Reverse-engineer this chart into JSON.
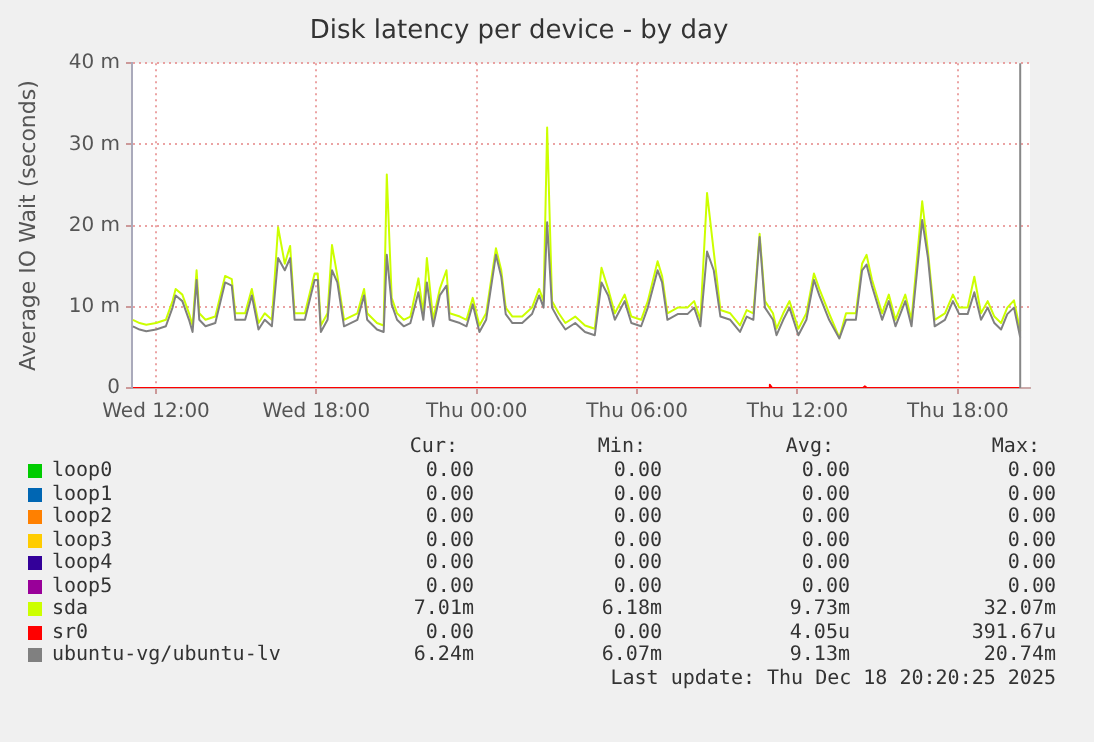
{
  "chart_data": {
    "type": "line",
    "title": "Disk latency per device - by day",
    "ylabel": "Average IO Wait (seconds)",
    "xlim": [
      "2025-12-17T11:06",
      "2025-12-18T20:42"
    ],
    "xticks": [
      {
        "value": "2025-12-17T12:00",
        "label": "Wed 12:00"
      },
      {
        "value": "2025-12-17T18:00",
        "label": "Wed 18:00"
      },
      {
        "value": "2025-12-18T00:00",
        "label": "Thu 00:00"
      },
      {
        "value": "2025-12-18T06:00",
        "label": "Thu 06:00"
      },
      {
        "value": "2025-12-18T12:00",
        "label": "Thu 12:00"
      },
      {
        "value": "2025-12-18T18:00",
        "label": "Thu 18:00"
      }
    ],
    "ylim": [
      0,
      40
    ],
    "yticks": [
      0,
      {
        "value": 10,
        "label": "10 m"
      },
      {
        "value": 20,
        "label": "20 m"
      },
      {
        "value": 30,
        "label": "30 m"
      },
      {
        "value": 40,
        "label": "40 m"
      }
    ],
    "grid": true,
    "legend": "bottom",
    "marker": "none",
    "line_style": "solid",
    "x": [
      "2025-12-17T11:08",
      "2025-12-17T11:23",
      "2025-12-17T11:38",
      "2025-12-17T12:00",
      "2025-12-17T12:22",
      "2025-12-17T12:37",
      "2025-12-17T12:44",
      "2025-12-17T12:59",
      "2025-12-17T13:14",
      "2025-12-17T13:22",
      "2025-12-17T13:31",
      "2025-12-17T13:37",
      "2025-12-17T13:51",
      "2025-12-17T14:13",
      "2025-12-17T14:35",
      "2025-12-17T14:50",
      "2025-12-17T14:58",
      "2025-12-17T15:20",
      "2025-12-17T15:35",
      "2025-12-17T15:50",
      "2025-12-17T16:04",
      "2025-12-17T16:20",
      "2025-12-17T16:34",
      "2025-12-17T16:49",
      "2025-12-17T17:01",
      "2025-12-17T17:11",
      "2025-12-17T17:34",
      "2025-12-17T17:56",
      "2025-12-17T18:03",
      "2025-12-17T18:10",
      "2025-12-17T18:25",
      "2025-12-17T18:35",
      "2025-12-17T18:47",
      "2025-12-17T19:02",
      "2025-12-17T19:32",
      "2025-12-17T19:47",
      "2025-12-17T19:54",
      "2025-12-17T20:16",
      "2025-12-17T20:31",
      "2025-12-17T20:38",
      "2025-12-17T20:49",
      "2025-12-17T21:01",
      "2025-12-17T21:16",
      "2025-12-17T21:31",
      "2025-12-17T21:49",
      "2025-12-17T22:00",
      "2025-12-17T22:08",
      "2025-12-17T22:22",
      "2025-12-17T22:37",
      "2025-12-17T22:52",
      "2025-12-17T22:59",
      "2025-12-17T23:22",
      "2025-12-17T23:37",
      "2025-12-17T23:51",
      "2025-12-18T00:06",
      "2025-12-18T00:21",
      "2025-12-18T00:43",
      "2025-12-18T00:55",
      "2025-12-18T01:05",
      "2025-12-18T01:20",
      "2025-12-18T01:42",
      "2025-12-18T02:04",
      "2025-12-18T02:20",
      "2025-12-18T02:30",
      "2025-12-18T02:38",
      "2025-12-18T02:49",
      "2025-12-18T03:04",
      "2025-12-18T03:19",
      "2025-12-18T03:41",
      "2025-12-18T04:03",
      "2025-12-18T04:25",
      "2025-12-18T04:40",
      "2025-12-18T04:55",
      "2025-12-18T05:10",
      "2025-12-18T05:32",
      "2025-12-18T05:47",
      "2025-12-18T06:09",
      "2025-12-18T06:24",
      "2025-12-18T06:46",
      "2025-12-18T06:56",
      "2025-12-18T07:08",
      "2025-12-18T07:31",
      "2025-12-18T07:53",
      "2025-12-18T08:08",
      "2025-12-18T08:22",
      "2025-12-18T08:37",
      "2025-12-18T08:52",
      "2025-12-18T09:07",
      "2025-12-18T09:29",
      "2025-12-18T09:51",
      "2025-12-18T10:06",
      "2025-12-18T10:21",
      "2025-12-18T10:35",
      "2025-12-18T10:47",
      "2025-12-18T11:05",
      "2025-12-18T11:13",
      "2025-12-18T11:28",
      "2025-12-18T11:42",
      "2025-12-18T12:02",
      "2025-12-18T12:20",
      "2025-12-18T12:37",
      "2025-12-18T12:49",
      "2025-12-18T13:11",
      "2025-12-18T13:34",
      "2025-12-18T13:49",
      "2025-12-18T14:11",
      "2025-12-18T14:25",
      "2025-12-18T14:35",
      "2025-12-18T14:47",
      "2025-12-18T15:10",
      "2025-12-18T15:25",
      "2025-12-18T15:40",
      "2025-12-18T16:02",
      "2025-12-18T16:16",
      "2025-12-18T16:40",
      "2025-12-18T16:53",
      "2025-12-18T17:08",
      "2025-12-18T17:31",
      "2025-12-18T17:49",
      "2025-12-18T18:03",
      "2025-12-18T18:22",
      "2025-12-18T18:37",
      "2025-12-18T18:52",
      "2025-12-18T19:07",
      "2025-12-18T19:22",
      "2025-12-18T19:37",
      "2025-12-18T19:51",
      "2025-12-18T20:06",
      "2025-12-18T20:20"
    ],
    "series": [
      {
        "name": "loop0",
        "color": "#00cc00",
        "values": [
          null,
          null,
          null,
          null,
          null,
          null,
          null,
          null,
          null,
          null,
          null,
          null,
          null,
          null,
          null,
          null,
          null,
          null,
          null,
          null,
          null,
          null,
          null,
          null,
          null,
          null,
          null,
          null,
          null,
          null,
          null,
          null,
          null,
          null,
          null,
          null,
          null,
          null,
          null,
          null,
          null,
          null,
          null,
          null,
          null,
          null,
          null,
          null,
          null,
          null,
          null,
          null,
          null,
          null,
          null,
          null,
          null,
          null,
          null,
          null,
          null,
          null,
          null,
          null,
          null,
          null,
          null,
          null,
          null,
          null,
          null,
          null,
          null,
          null,
          null,
          null,
          null,
          null,
          null,
          null,
          null,
          null,
          null,
          null,
          null,
          null,
          null,
          null,
          null,
          null,
          null,
          null,
          null,
          null,
          null,
          null,
          null,
          null,
          null,
          null,
          null,
          null,
          null,
          null,
          null,
          null,
          null,
          null,
          null,
          null,
          null,
          null,
          null,
          null,
          null,
          null,
          null,
          null,
          null,
          null,
          null,
          null,
          null,
          null,
          null,
          null,
          null,
          null,
          null
        ]
      },
      {
        "name": "loop1",
        "color": "#0066b3",
        "values": [
          null,
          null,
          null,
          null,
          null,
          null,
          null,
          null,
          null,
          null,
          null,
          null,
          null,
          null,
          null,
          null,
          null,
          null,
          null,
          null,
          null,
          null,
          null,
          null,
          null,
          null,
          null,
          null,
          null,
          null,
          null,
          null,
          null,
          null,
          null,
          null,
          null,
          null,
          null,
          null,
          null,
          null,
          null,
          null,
          null,
          null,
          null,
          null,
          null,
          null,
          null,
          null,
          null,
          null,
          null,
          null,
          null,
          null,
          null,
          null,
          null,
          null,
          null,
          null,
          null,
          null,
          null,
          null,
          null,
          null,
          null,
          null,
          null,
          null,
          null,
          null,
          null,
          null,
          null,
          null,
          null,
          null,
          null,
          null,
          null,
          null,
          null,
          null,
          null,
          null,
          null,
          null,
          null,
          null,
          null,
          null,
          null,
          null,
          null,
          null,
          null,
          null,
          null,
          null,
          null,
          null,
          null,
          null,
          null,
          null,
          null,
          null,
          null,
          null,
          null,
          null,
          null,
          null,
          null,
          null,
          null,
          null,
          null,
          null,
          null,
          null,
          null,
          null,
          null
        ]
      },
      {
        "name": "loop2",
        "color": "#ff8000",
        "values": [
          null,
          null,
          null,
          null,
          null,
          null,
          null,
          null,
          null,
          null,
          null,
          null,
          null,
          null,
          null,
          null,
          null,
          null,
          null,
          null,
          null,
          null,
          null,
          null,
          null,
          null,
          null,
          null,
          null,
          null,
          null,
          null,
          null,
          null,
          null,
          null,
          null,
          null,
          null,
          null,
          null,
          null,
          null,
          null,
          null,
          null,
          null,
          null,
          null,
          null,
          null,
          null,
          null,
          null,
          null,
          null,
          null,
          null,
          null,
          null,
          null,
          null,
          null,
          null,
          null,
          null,
          null,
          null,
          null,
          null,
          null,
          null,
          null,
          null,
          null,
          null,
          null,
          null,
          null,
          null,
          null,
          null,
          null,
          null,
          null,
          null,
          null,
          null,
          null,
          null,
          null,
          null,
          null,
          null,
          null,
          null,
          null,
          null,
          null,
          null,
          null,
          null,
          null,
          null,
          null,
          null,
          null,
          null,
          null,
          null,
          null,
          null,
          null,
          null,
          null,
          null,
          null,
          null,
          null,
          null,
          null,
          null,
          null,
          null,
          null,
          null,
          null,
          null,
          null
        ]
      },
      {
        "name": "loop3",
        "color": "#ffcc00",
        "values": [
          null,
          null,
          null,
          null,
          null,
          null,
          null,
          null,
          null,
          null,
          null,
          null,
          null,
          null,
          null,
          null,
          null,
          null,
          null,
          null,
          null,
          null,
          null,
          null,
          null,
          null,
          null,
          null,
          null,
          null,
          null,
          null,
          null,
          null,
          null,
          null,
          null,
          null,
          null,
          null,
          null,
          null,
          null,
          null,
          null,
          null,
          null,
          null,
          null,
          null,
          null,
          null,
          null,
          null,
          null,
          null,
          null,
          null,
          null,
          null,
          null,
          null,
          null,
          null,
          null,
          null,
          null,
          null,
          null,
          null,
          null,
          null,
          null,
          null,
          null,
          null,
          null,
          null,
          null,
          null,
          null,
          null,
          null,
          null,
          null,
          null,
          null,
          null,
          null,
          null,
          null,
          null,
          null,
          null,
          null,
          null,
          null,
          null,
          null,
          null,
          null,
          null,
          null,
          null,
          null,
          null,
          null,
          null,
          null,
          null,
          null,
          null,
          null,
          null,
          null,
          null,
          null,
          null,
          null,
          null,
          null,
          null,
          null,
          null,
          null,
          null,
          null,
          null,
          null
        ]
      },
      {
        "name": "loop4",
        "color": "#330099",
        "values": [
          null,
          null,
          null,
          null,
          null,
          null,
          null,
          null,
          null,
          null,
          null,
          null,
          null,
          null,
          null,
          null,
          null,
          null,
          null,
          null,
          null,
          null,
          null,
          null,
          null,
          null,
          null,
          null,
          null,
          null,
          null,
          null,
          null,
          null,
          null,
          null,
          null,
          null,
          null,
          null,
          null,
          null,
          null,
          null,
          null,
          null,
          null,
          null,
          null,
          null,
          null,
          null,
          null,
          null,
          null,
          null,
          null,
          null,
          null,
          null,
          null,
          null,
          null,
          null,
          null,
          null,
          null,
          null,
          null,
          null,
          null,
          null,
          null,
          null,
          null,
          null,
          null,
          null,
          null,
          null,
          null,
          null,
          null,
          null,
          null,
          null,
          null,
          null,
          null,
          null,
          null,
          null,
          null,
          null,
          null,
          null,
          null,
          null,
          null,
          null,
          null,
          null,
          null,
          null,
          null,
          null,
          null,
          null,
          null,
          null,
          null,
          null,
          null,
          null,
          null,
          null,
          null,
          null,
          null,
          null,
          null,
          null,
          null,
          null,
          null,
          null,
          null,
          null,
          null
        ]
      },
      {
        "name": "loop5",
        "color": "#990099",
        "values": [
          null,
          null,
          null,
          null,
          null,
          null,
          null,
          null,
          null,
          null,
          null,
          null,
          null,
          null,
          null,
          null,
          null,
          null,
          null,
          null,
          null,
          null,
          null,
          null,
          null,
          null,
          null,
          null,
          null,
          null,
          null,
          null,
          null,
          null,
          null,
          null,
          null,
          null,
          null,
          null,
          null,
          null,
          null,
          null,
          null,
          null,
          null,
          null,
          null,
          null,
          null,
          null,
          null,
          null,
          null,
          null,
          null,
          null,
          null,
          null,
          null,
          null,
          null,
          null,
          null,
          null,
          null,
          null,
          null,
          null,
          null,
          null,
          null,
          null,
          null,
          null,
          null,
          null,
          null,
          null,
          null,
          null,
          null,
          null,
          null,
          null,
          null,
          null,
          null,
          null,
          null,
          null,
          null,
          null,
          null,
          null,
          null,
          null,
          null,
          null,
          null,
          null,
          null,
          null,
          null,
          null,
          null,
          null,
          null,
          null,
          null,
          null,
          null,
          null,
          null,
          null,
          null,
          null,
          null,
          null,
          null,
          null,
          null,
          null,
          null,
          null,
          null,
          null,
          null
        ]
      },
      {
        "name": "sda",
        "color": "#ccff00",
        "values": [
          8.4,
          8.0,
          7.8,
          8.0,
          8.4,
          10.7,
          12.2,
          11.5,
          9.2,
          7.7,
          14.5,
          9.2,
          8.4,
          8.8,
          13.8,
          13.4,
          9.2,
          9.2,
          12.2,
          8.0,
          9.2,
          8.4,
          19.8,
          15.3,
          17.5,
          9.2,
          9.2,
          14.1,
          14.1,
          7.7,
          9.2,
          17.6,
          13.8,
          8.4,
          9.2,
          12.2,
          9.2,
          8.0,
          7.7,
          26.3,
          11.1,
          9.2,
          8.4,
          8.8,
          13.5,
          9.2,
          16.0,
          8.4,
          12.2,
          14.5,
          9.2,
          8.8,
          8.4,
          11.1,
          7.7,
          9.2,
          17.2,
          14.5,
          9.9,
          8.8,
          8.8,
          9.9,
          12.2,
          10.7,
          32.07,
          10.7,
          9.2,
          8.0,
          8.8,
          7.7,
          7.3,
          14.8,
          12.2,
          9.2,
          11.5,
          8.8,
          8.4,
          10.7,
          15.6,
          13.8,
          9.2,
          9.9,
          9.9,
          10.7,
          8.4,
          24.0,
          16.8,
          9.6,
          9.2,
          7.7,
          9.6,
          9.2,
          19.0,
          10.7,
          9.2,
          7.3,
          9.2,
          10.7,
          7.3,
          9.2,
          14.1,
          12.2,
          9.2,
          6.2,
          9.2,
          9.2,
          15.3,
          16.4,
          13.4,
          9.2,
          11.5,
          8.4,
          11.5,
          8.4,
          23.0,
          16.8,
          8.4,
          9.2,
          11.5,
          9.9,
          9.9,
          13.7,
          9.2,
          10.7,
          8.8,
          8.0,
          9.9,
          10.8,
          7.01
        ]
      },
      {
        "name": "sr0",
        "color": "#ff0000",
        "x": [
          "2025-12-17T11:08",
          "2025-12-18T10:54",
          "2025-12-18T10:58",
          "2025-12-18T11:03",
          "2025-12-18T14:27",
          "2025-12-18T14:31",
          "2025-12-18T14:36",
          "2025-12-18T20:20"
        ],
        "values": [
          0,
          0,
          0.4,
          0,
          0,
          0.2,
          0,
          0
        ]
      },
      {
        "name": "ubuntu-vg/ubuntu-lv",
        "color": "#808080",
        "values": [
          7.6,
          7.2,
          7.0,
          7.2,
          7.6,
          9.9,
          11.4,
          10.7,
          8.4,
          6.9,
          13.3,
          8.4,
          7.6,
          8.0,
          13.0,
          12.6,
          8.4,
          8.4,
          11.4,
          7.2,
          8.4,
          7.6,
          16.0,
          14.5,
          16.0,
          8.4,
          8.4,
          13.3,
          13.3,
          6.9,
          8.4,
          14.5,
          13.0,
          7.6,
          8.4,
          11.4,
          8.4,
          7.2,
          6.9,
          16.4,
          10.3,
          8.4,
          7.6,
          8.0,
          11.8,
          8.4,
          13.0,
          7.6,
          11.4,
          12.6,
          8.4,
          8.0,
          7.6,
          10.3,
          6.9,
          8.4,
          16.4,
          13.7,
          9.1,
          8.0,
          8.0,
          9.1,
          11.4,
          9.9,
          20.4,
          9.9,
          8.4,
          7.2,
          8.0,
          6.9,
          6.5,
          13.0,
          11.4,
          8.4,
          10.7,
          8.0,
          7.6,
          9.9,
          14.5,
          13.0,
          8.4,
          9.1,
          9.1,
          9.9,
          7.6,
          16.8,
          14.5,
          8.8,
          8.4,
          6.9,
          8.8,
          8.4,
          18.6,
          9.9,
          8.4,
          6.5,
          8.4,
          9.9,
          6.5,
          8.4,
          13.3,
          11.4,
          8.4,
          6.1,
          8.4,
          8.4,
          14.5,
          15.2,
          12.6,
          8.4,
          10.7,
          7.6,
          10.7,
          7.6,
          20.7,
          16.0,
          7.6,
          8.4,
          10.7,
          9.1,
          9.1,
          11.8,
          8.4,
          9.9,
          8.0,
          7.2,
          9.1,
          9.9,
          6.24
        ]
      }
    ],
    "ref_lines": [
      {
        "axis": "x",
        "value": "2025-12-18T20:20",
        "color": "#888888"
      }
    ],
    "annotations": [
      "Cur:",
      "Min:",
      "Avg:",
      "Max:",
      "0.00",
      "0.00",
      "0.00",
      "0.00",
      "0.00",
      "0.00",
      "0.00",
      "0.00",
      "0.00",
      "0.00",
      "0.00",
      "0.00",
      "0.00",
      "0.00",
      "0.00",
      "0.00",
      "0.00",
      "0.00",
      "0.00",
      "0.00",
      "0.00",
      "0.00",
      "0.00",
      "0.00",
      "7.01m",
      "6.18m",
      "9.73m",
      "32.07m",
      "0.00",
      "0.00",
      "4.05u",
      "391.67u",
      "6.24m",
      "6.07m",
      "9.13m",
      "20.74m",
      "Last update: Thu Dec 18 20:20:25 2025"
    ]
  }
}
